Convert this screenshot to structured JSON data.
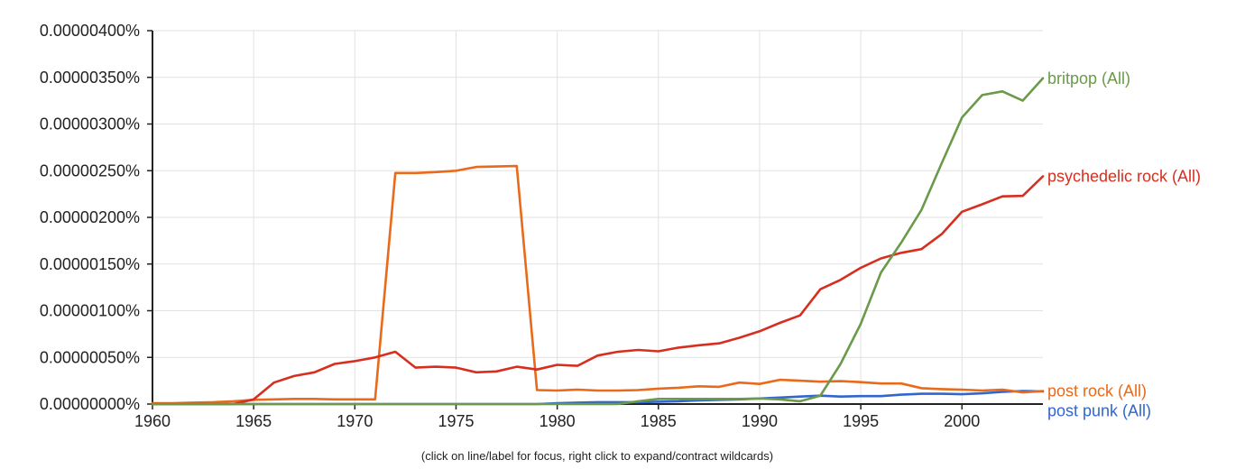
{
  "footer": {
    "note": "(click on line/label for focus, right click to expand/contract wildcards)"
  },
  "chart_data": {
    "type": "line",
    "title": "",
    "xlabel": "",
    "ylabel": "",
    "xlim": [
      1960,
      2004
    ],
    "ylim": [
      0,
      4e-08
    ],
    "x_ticks": [
      1960,
      1965,
      1970,
      1975,
      1980,
      1985,
      1990,
      1995,
      2000
    ],
    "y_ticks": [
      {
        "value": 0,
        "label": "0.00000000%"
      },
      {
        "value": 5e-09,
        "label": "0.00000050%"
      },
      {
        "value": 1e-08,
        "label": "0.00000100%"
      },
      {
        "value": 1.5e-08,
        "label": "0.00000150%"
      },
      {
        "value": 2e-08,
        "label": "0.00000200%"
      },
      {
        "value": 2.5e-08,
        "label": "0.00000250%"
      },
      {
        "value": 3e-08,
        "label": "0.00000300%"
      },
      {
        "value": 3.5e-08,
        "label": "0.00000350%"
      },
      {
        "value": 4e-08,
        "label": "0.00000400%"
      }
    ],
    "grid": true,
    "legend": "end-of-line labels",
    "series": [
      {
        "name": "post punk (All)",
        "color": "#3366cc",
        "x": [
          1960,
          1961,
          1962,
          1963,
          1964,
          1965,
          1966,
          1967,
          1968,
          1969,
          1970,
          1971,
          1972,
          1973,
          1974,
          1975,
          1976,
          1977,
          1978,
          1979,
          1980,
          1981,
          1982,
          1983,
          1984,
          1985,
          1986,
          1987,
          1988,
          1989,
          1990,
          1991,
          1992,
          1993,
          1994,
          1995,
          1996,
          1997,
          1998,
          1999,
          2000,
          2001,
          2002,
          2003,
          2004
        ],
        "values": [
          0,
          0,
          0,
          0,
          0,
          0,
          0,
          0,
          0,
          0,
          0,
          0,
          0,
          0,
          0,
          0,
          0,
          0,
          0,
          0,
          1e-10,
          1.5e-10,
          2e-10,
          2e-10,
          2e-10,
          2.5e-10,
          3e-10,
          4e-10,
          4.5e-10,
          5e-10,
          6e-10,
          7e-10,
          8e-10,
          9e-10,
          8e-10,
          8.5e-10,
          8.5e-10,
          1e-09,
          1.1e-09,
          1.1e-09,
          1.05e-09,
          1.15e-09,
          1.3e-09,
          1.4e-09,
          1.35e-09
        ]
      },
      {
        "name": "post rock (All)",
        "color": "#e86a1a",
        "x": [
          1960,
          1961,
          1962,
          1963,
          1964,
          1965,
          1966,
          1967,
          1968,
          1969,
          1970,
          1971,
          1972,
          1973,
          1974,
          1975,
          1976,
          1977,
          1978,
          1979,
          1980,
          1981,
          1982,
          1983,
          1984,
          1985,
          1986,
          1987,
          1988,
          1989,
          1990,
          1991,
          1992,
          1993,
          1994,
          1995,
          1996,
          1997,
          1998,
          1999,
          2000,
          2001,
          2002,
          2003,
          2004
        ],
        "values": [
          1e-10,
          1e-10,
          1.5e-10,
          2e-10,
          3e-10,
          4.5e-10,
          5e-10,
          5.5e-10,
          5.5e-10,
          5e-10,
          5e-10,
          5e-10,
          2.475e-08,
          2.475e-08,
          2.485e-08,
          2.5e-08,
          2.54e-08,
          2.545e-08,
          2.55e-08,
          1.5e-09,
          1.45e-09,
          1.55e-09,
          1.45e-09,
          1.45e-09,
          1.5e-09,
          1.65e-09,
          1.75e-09,
          1.9e-09,
          1.85e-09,
          2.3e-09,
          2.15e-09,
          2.6e-09,
          2.5e-09,
          2.4e-09,
          2.45e-09,
          2.35e-09,
          2.2e-09,
          2.2e-09,
          1.7e-09,
          1.6e-09,
          1.55e-09,
          1.45e-09,
          1.55e-09,
          1.25e-09,
          1.4e-09
        ]
      },
      {
        "name": "psychedelic rock (All)",
        "color": "#d62f1f",
        "x": [
          1960,
          1961,
          1962,
          1963,
          1964,
          1965,
          1966,
          1967,
          1968,
          1969,
          1970,
          1971,
          1972,
          1973,
          1974,
          1975,
          1976,
          1977,
          1978,
          1979,
          1980,
          1981,
          1982,
          1983,
          1984,
          1985,
          1986,
          1987,
          1988,
          1989,
          1990,
          1991,
          1992,
          1993,
          1994,
          1995,
          1996,
          1997,
          1998,
          1999,
          2000,
          2001,
          2002,
          2003,
          2004
        ],
        "values": [
          0,
          0,
          0,
          0,
          0,
          5e-10,
          2.3e-09,
          3e-09,
          3.4e-09,
          4.3e-09,
          4.6e-09,
          5e-09,
          5.6e-09,
          3.9e-09,
          4e-09,
          3.9e-09,
          3.4e-09,
          3.5e-09,
          4e-09,
          3.7e-09,
          4.2e-09,
          4.1e-09,
          5.2e-09,
          5.6e-09,
          5.8e-09,
          5.65e-09,
          6.05e-09,
          6.3e-09,
          6.5e-09,
          7.1e-09,
          7.8e-09,
          8.7e-09,
          9.5e-09,
          1.23e-08,
          1.33e-08,
          1.46e-08,
          1.56e-08,
          1.62e-08,
          1.66e-08,
          1.82e-08,
          2.06e-08,
          2.14e-08,
          2.225e-08,
          2.23e-08,
          2.44e-08
        ]
      },
      {
        "name": "britpop (All)",
        "color": "#6a9a4a",
        "x": [
          1960,
          1961,
          1962,
          1963,
          1964,
          1965,
          1966,
          1967,
          1968,
          1969,
          1970,
          1971,
          1972,
          1973,
          1974,
          1975,
          1976,
          1977,
          1978,
          1979,
          1980,
          1981,
          1982,
          1983,
          1984,
          1985,
          1986,
          1987,
          1988,
          1989,
          1990,
          1991,
          1992,
          1993,
          1994,
          1995,
          1996,
          1997,
          1998,
          1999,
          2000,
          2001,
          2002,
          2003,
          2004
        ],
        "values": [
          0,
          0,
          0,
          0,
          0,
          0,
          0,
          0,
          0,
          0,
          0,
          0,
          0,
          0,
          0,
          0,
          0,
          0,
          0,
          0,
          0,
          0,
          0,
          0,
          3e-10,
          5.5e-10,
          5.5e-10,
          5.5e-10,
          5.5e-10,
          5.5e-10,
          6e-10,
          5e-10,
          3e-10,
          9e-10,
          4.3e-09,
          8.6e-09,
          1.41e-08,
          1.73e-08,
          2.08e-08,
          2.58e-08,
          3.07e-08,
          3.31e-08,
          3.35e-08,
          3.25e-08,
          3.49e-08
        ]
      }
    ]
  }
}
